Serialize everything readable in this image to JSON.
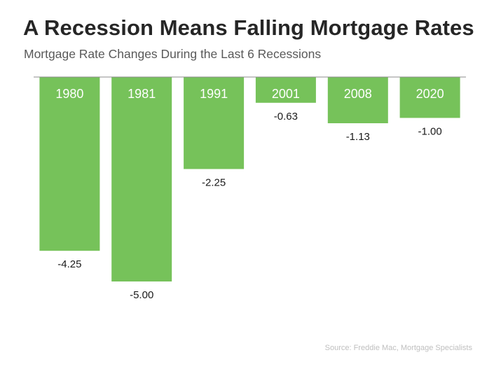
{
  "title": "A Recession Means Falling Mortgage Rates",
  "subtitle": "Mortgage Rate Changes During the Last 6 Recessions",
  "source": "Source: Freddie Mac, Mortgage Specialists",
  "colors": {
    "bar": "#76C25A",
    "baseline": "#8c8c8c",
    "category_label": "#ffffff",
    "value_label": "#1a1a1a"
  },
  "chart_data": {
    "type": "bar",
    "title": "A Recession Means Falling Mortgage Rates",
    "subtitle": "Mortgage Rate Changes During the Last 6 Recessions",
    "categories": [
      "1980",
      "1981",
      "1991",
      "2001",
      "2008",
      "2020"
    ],
    "values": [
      -4.25,
      -5.0,
      -2.25,
      -0.63,
      -1.13,
      -1.0
    ],
    "value_labels": [
      "-4.25",
      "-5.00",
      "-2.25",
      "-0.63",
      "-1.13",
      "-1.00"
    ],
    "xlabel": "",
    "ylabel": "",
    "ylim": [
      -5.0,
      0
    ],
    "grid": false,
    "legend": "none"
  }
}
